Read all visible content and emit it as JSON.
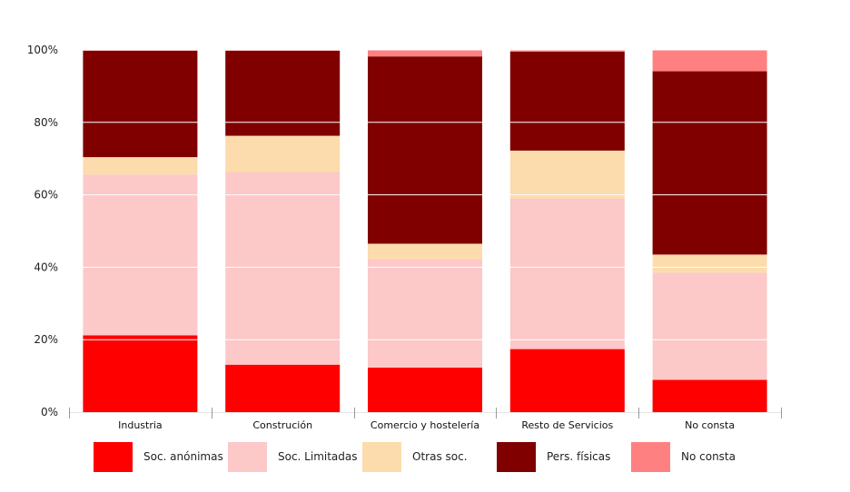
{
  "chart_data": {
    "type": "bar",
    "stacked": true,
    "categories": [
      "Industria",
      "Construción",
      "Comercio y hostelería",
      "Resto de Servicios",
      "No consta"
    ],
    "series": [
      {
        "name": "Soc. anónimas",
        "color": "#ff0000",
        "values": [
          21.2,
          13.1,
          12.3,
          17.4,
          8.9
        ]
      },
      {
        "name": "Soc. Limitadas",
        "color": "#fcc8c8",
        "values": [
          44.4,
          53.2,
          29.9,
          41.6,
          29.6
        ]
      },
      {
        "name": "Otras soc.",
        "color": "#fcdcac",
        "values": [
          4.8,
          10.0,
          4.3,
          13.2,
          5.0
        ]
      },
      {
        "name": "Pers. físicas",
        "color": "#800000",
        "values": [
          29.4,
          23.5,
          51.7,
          27.3,
          50.6
        ]
      },
      {
        "name": "No consta",
        "color": "#ff8080",
        "values": [
          0.2,
          0.2,
          1.8,
          0.5,
          5.9
        ]
      }
    ],
    "y_ticks": [
      "0%",
      "20%",
      "40%",
      "60%",
      "80%",
      "100%"
    ],
    "ylim": [
      0,
      100
    ],
    "grid": true,
    "legend_position": "bottom"
  }
}
